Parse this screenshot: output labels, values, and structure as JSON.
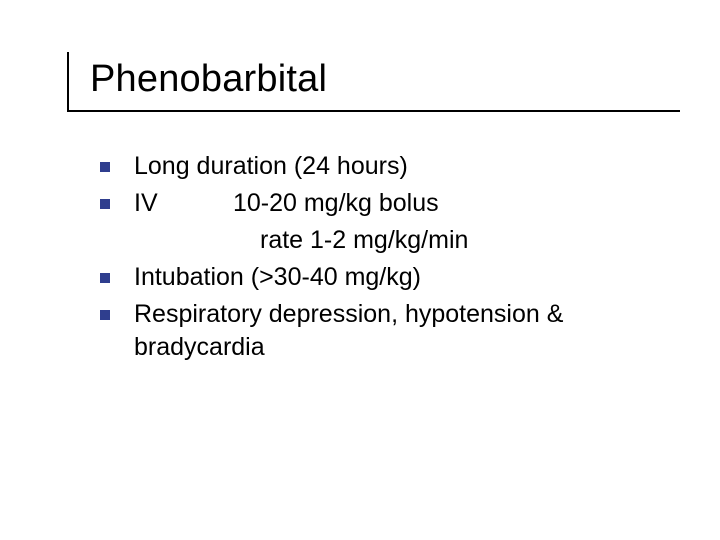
{
  "type": "slide",
  "background_color": "#ffffff",
  "text_color": "#000000",
  "bullet_color": "#2f3e8e",
  "title_fontsize": 38,
  "body_fontsize": 25,
  "underline_color": "#000000",
  "title": "Phenobarbital",
  "bullets": [
    {
      "text": "Long duration (24 hours)"
    },
    {
      "label": "IV",
      "text": "10-20 mg/kg bolus",
      "subline": "rate 1-2 mg/kg/min"
    },
    {
      "text": "Intubation (>30-40 mg/kg)"
    },
    {
      "text": "Respiratory depression, hypotension & bradycardia"
    }
  ]
}
